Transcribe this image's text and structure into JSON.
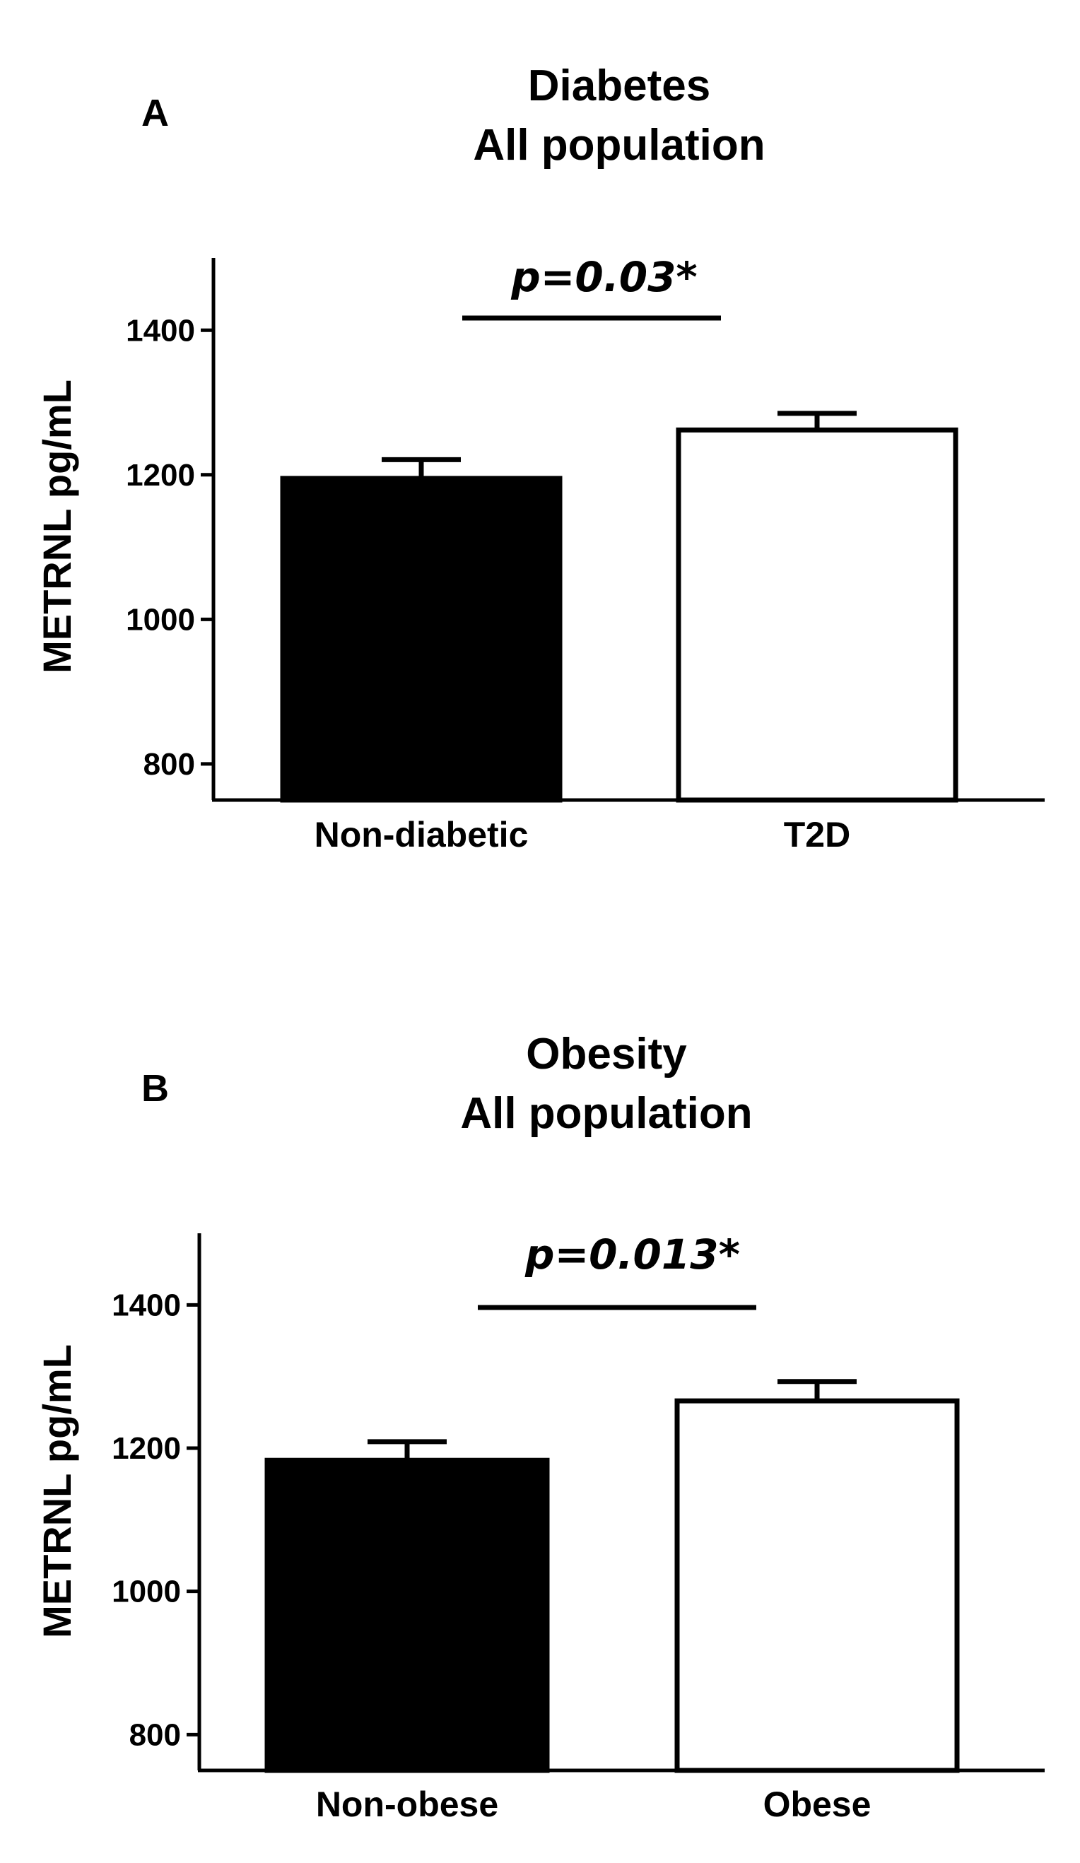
{
  "chart_data": [
    {
      "type": "bar",
      "panel": "A",
      "title": [
        "Diabetes",
        "All population"
      ],
      "ylabel": "METRNL pg/mL",
      "xlabel": "",
      "ylim": [
        750,
        1500
      ],
      "yticks": [
        800,
        1000,
        1200,
        1400
      ],
      "categories": [
        "Non-diabetic",
        "T2D"
      ],
      "values": [
        1195,
        1262
      ],
      "errors": [
        26,
        23
      ],
      "fills": [
        "#000000",
        "#ffffff"
      ],
      "annotation": "p=0.03*"
    },
    {
      "type": "bar",
      "panel": "B",
      "title": [
        "Obesity",
        "All population"
      ],
      "ylabel": "METRNL pg/mL",
      "xlabel": "",
      "ylim": [
        750,
        1500
      ],
      "yticks": [
        800,
        1000,
        1200,
        1400
      ],
      "categories": [
        "Non-obese",
        "Obese"
      ],
      "values": [
        1183,
        1266
      ],
      "errors": [
        26,
        27
      ],
      "fills": [
        "#000000",
        "#ffffff"
      ],
      "annotation": "p=0.013*"
    }
  ]
}
